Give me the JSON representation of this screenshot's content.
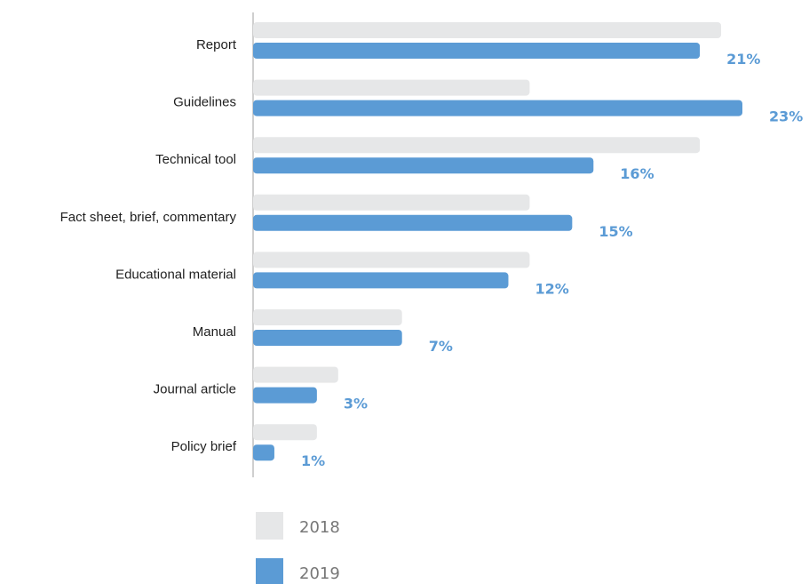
{
  "colors": {
    "series_2018": "#e6e7e8",
    "series_2019": "#5b9bd5",
    "value_label": "#5b9bd5",
    "axis": "#bfbfbf",
    "legend_text": "#777777"
  },
  "chart_data": {
    "type": "bar",
    "orientation": "horizontal",
    "categories": [
      "Report",
      "Guidelines",
      "Technical tool",
      "Fact sheet, brief, commentary",
      "Educational material",
      "Manual",
      "Journal article",
      "Policy brief"
    ],
    "series": [
      {
        "name": "2018",
        "values": [
          22,
          13,
          21,
          13,
          13,
          7,
          4,
          3
        ]
      },
      {
        "name": "2019",
        "values": [
          21,
          23,
          16,
          15,
          12,
          7,
          3,
          1
        ],
        "value_labels": [
          "21%",
          "23%",
          "16%",
          "15%",
          "12%",
          "7%",
          "3%",
          "1%"
        ]
      }
    ],
    "unit": "%",
    "xlim": [
      0,
      23
    ],
    "grid": false,
    "legend_position": "bottom-left",
    "title": "",
    "xlabel": "",
    "ylabel": ""
  }
}
